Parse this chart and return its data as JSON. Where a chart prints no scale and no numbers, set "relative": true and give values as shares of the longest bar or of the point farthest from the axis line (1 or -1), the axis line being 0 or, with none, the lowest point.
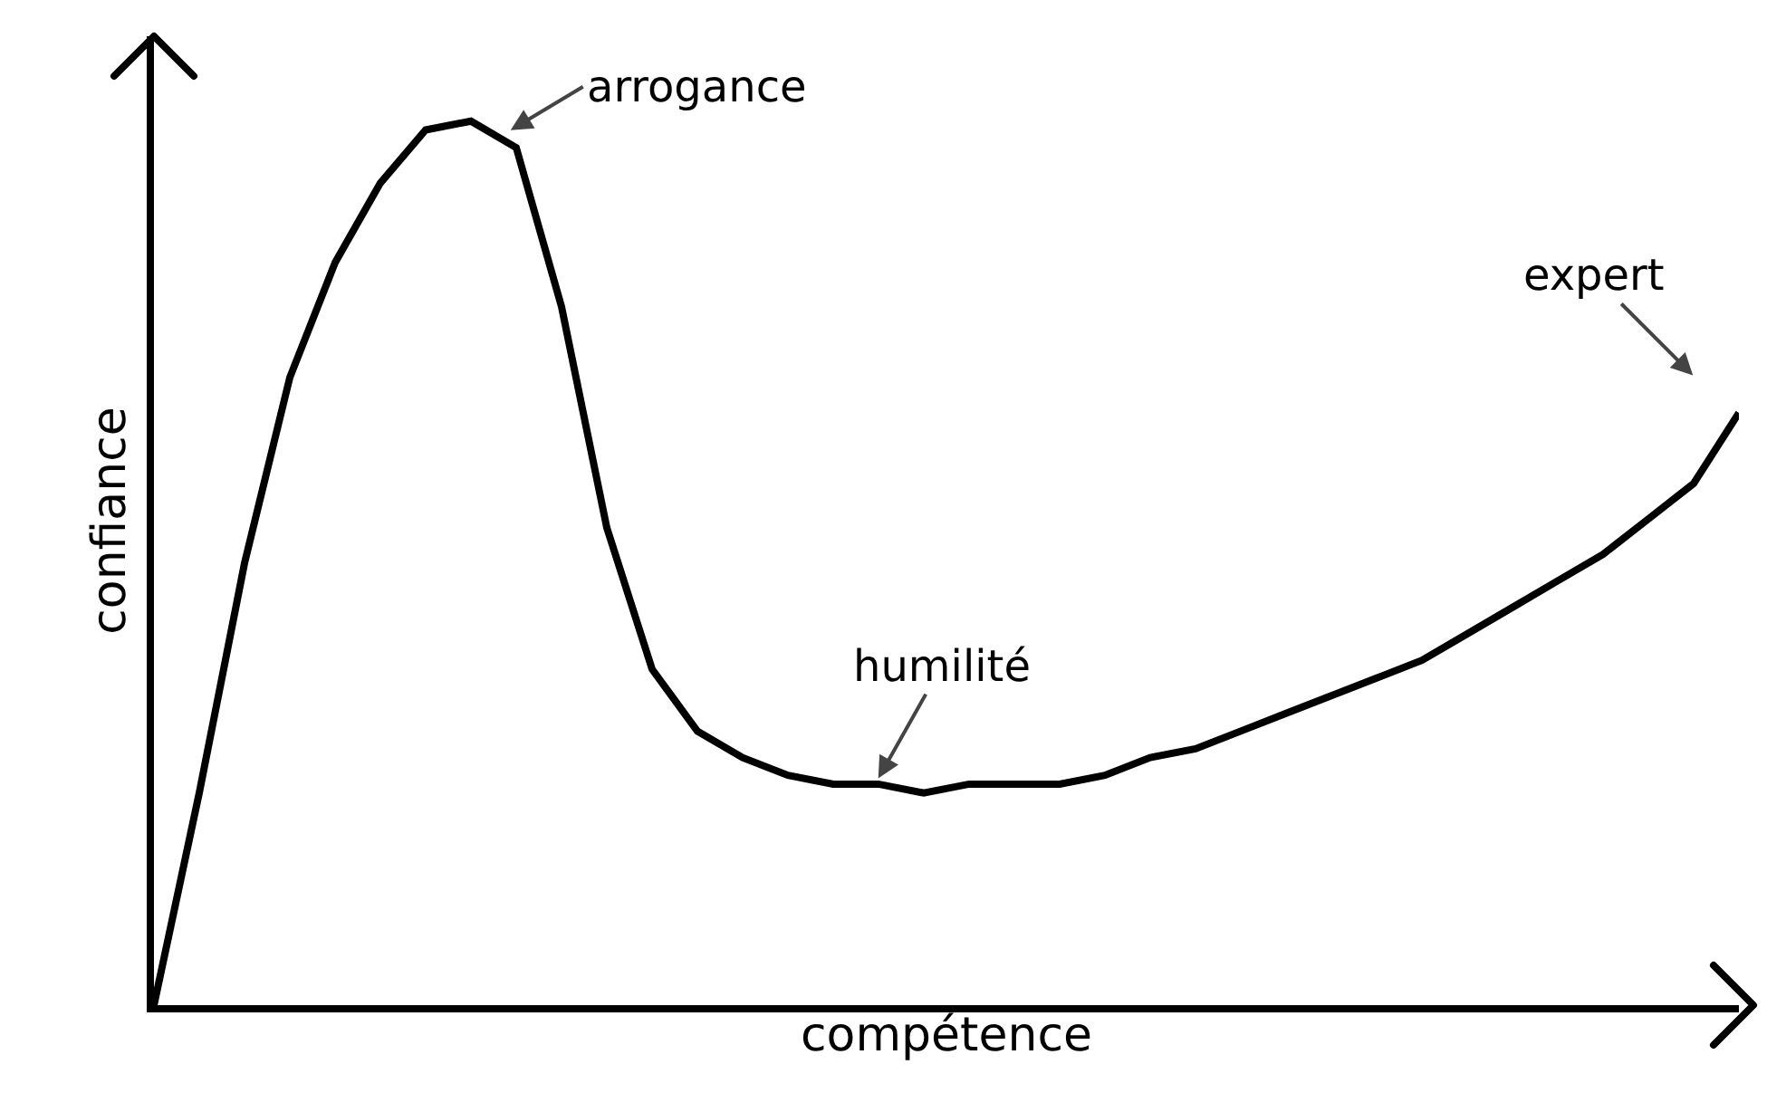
{
  "chart_data": {
    "type": "line",
    "relative": true,
    "xlabel": "compétence",
    "ylabel": "confiance",
    "color": "#000000",
    "categories": [
      null,
      null,
      null,
      null,
      null,
      null,
      null,
      null,
      null,
      null,
      null,
      null,
      null,
      null,
      null,
      null,
      null,
      null,
      null,
      null,
      null,
      null,
      null,
      null,
      null,
      null,
      null,
      null,
      null,
      null,
      null,
      null,
      null,
      null,
      null,
      null
    ],
    "values": [
      0,
      0.24,
      0.5,
      0.71,
      0.84,
      0.93,
      0.99,
      1,
      0.97,
      0.79,
      0.54,
      0.38,
      0.31,
      0.28,
      0.26,
      0.25,
      0.25,
      0.24,
      0.25,
      0.25,
      0.25,
      0.26,
      0.28,
      0.29,
      0.31,
      0.33,
      0.35,
      0.37,
      0.39,
      0.42,
      0.45,
      0.48,
      0.51,
      0.55,
      0.59,
      0.67
    ],
    "annotations": [
      "arrogance",
      "humilité",
      "expert"
    ],
    "grid": false,
    "marker": "none",
    "line_style": "solid"
  }
}
